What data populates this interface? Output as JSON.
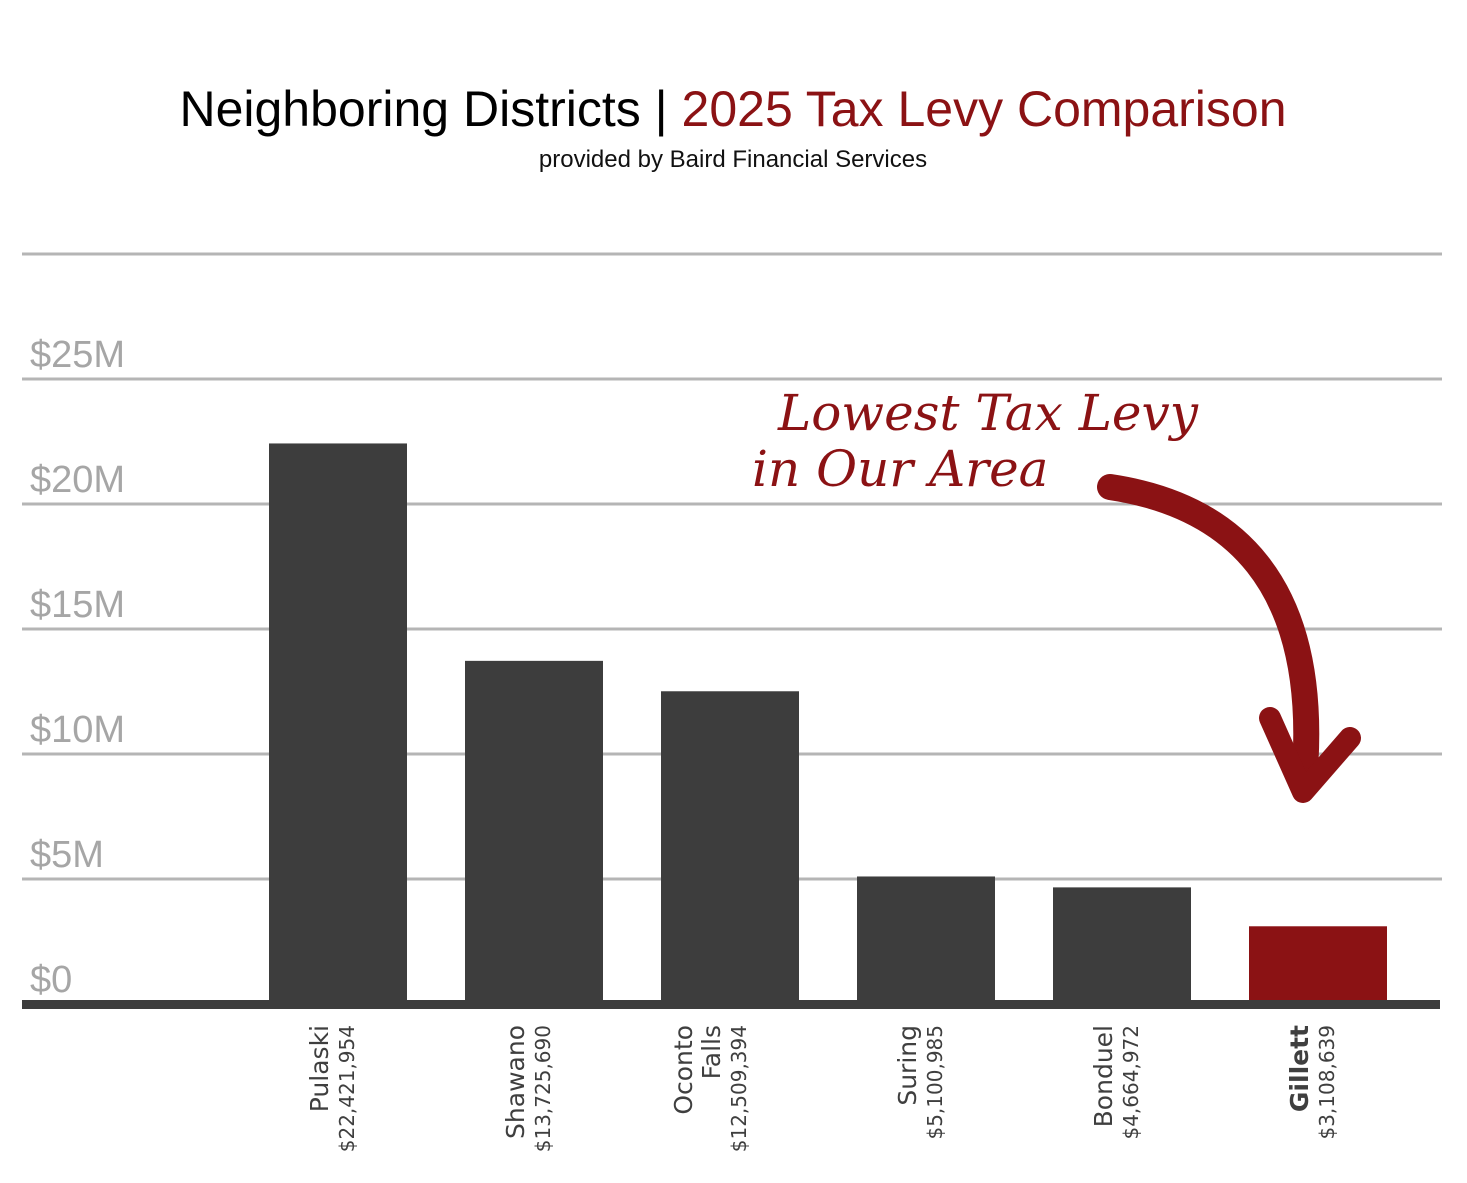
{
  "colors": {
    "bar": "#3d3d3d",
    "highlight": "#8b1214",
    "grid": "#b5b5b5",
    "axis": "#3d3d3d",
    "tick_text": "#a6a6a6"
  },
  "chart_data": {
    "type": "bar",
    "title": {
      "part1": "Neighboring Districts | ",
      "part2": "2025 Tax Levy Comparison"
    },
    "subtitle": "provided by Baird Financial Services",
    "categories": [
      [
        "Pulaski"
      ],
      [
        "Shawano"
      ],
      [
        "Oconto",
        "Falls"
      ],
      [
        "Suring"
      ],
      [
        "Bonduel"
      ],
      [
        "Gillett"
      ]
    ],
    "values": [
      22421954,
      13725690,
      12509394,
      5100985,
      4664972,
      3108639
    ],
    "value_labels": [
      "$22,421,954",
      "$13,725,690",
      "$12,509,394",
      "$5,100,985",
      "$4,664,972",
      "$3,108,639"
    ],
    "highlight_index": 5,
    "y_ticks": [
      {
        "value": 0,
        "label": "$0"
      },
      {
        "value": 5000000,
        "label": "$5M"
      },
      {
        "value": 10000000,
        "label": "$10M"
      },
      {
        "value": 15000000,
        "label": "$15M"
      },
      {
        "value": 20000000,
        "label": "$20M"
      },
      {
        "value": 25000000,
        "label": "$25M"
      }
    ],
    "ylim": [
      0,
      30000000
    ],
    "xlabel": "",
    "ylabel": "",
    "grid": true,
    "annotation": {
      "lines": [
        "Lowest Tax Levy",
        "in Our Area"
      ],
      "points_to": "Gillett"
    }
  }
}
